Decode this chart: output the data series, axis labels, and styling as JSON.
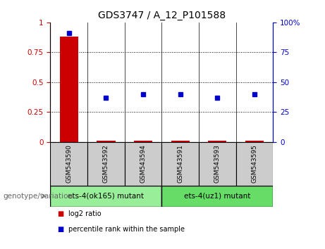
{
  "title": "GDS3747 / A_12_P101588",
  "samples": [
    "GSM543590",
    "GSM543592",
    "GSM543594",
    "GSM543591",
    "GSM543593",
    "GSM543595"
  ],
  "log2_ratio": [
    0.88,
    0.01,
    0.01,
    0.01,
    0.01,
    0.01
  ],
  "percentile_rank": [
    0.91,
    0.37,
    0.4,
    0.4,
    0.37,
    0.4
  ],
  "group1_label": "ets-4(ok165) mutant",
  "group2_label": "ets-4(uz1) mutant",
  "group1_color": "#99ee99",
  "group2_color": "#66dd66",
  "sample_box_color": "#cccccc",
  "bar_color": "#cc0000",
  "dot_color": "#0000cc",
  "ylim_left": [
    0,
    1
  ],
  "ylim_right": [
    0,
    100
  ],
  "yticks_left": [
    0,
    0.25,
    0.5,
    0.75,
    1.0
  ],
  "ytick_labels_left": [
    "0",
    "0.25",
    "0.5",
    "0.75",
    "1"
  ],
  "yticks_right": [
    0,
    25,
    50,
    75,
    100
  ],
  "ytick_labels_right": [
    "0",
    "25",
    "50",
    "75",
    "100%"
  ],
  "legend_red_label": "log2 ratio",
  "legend_blue_label": "percentile rank within the sample",
  "genotype_label": "genotype/variation"
}
